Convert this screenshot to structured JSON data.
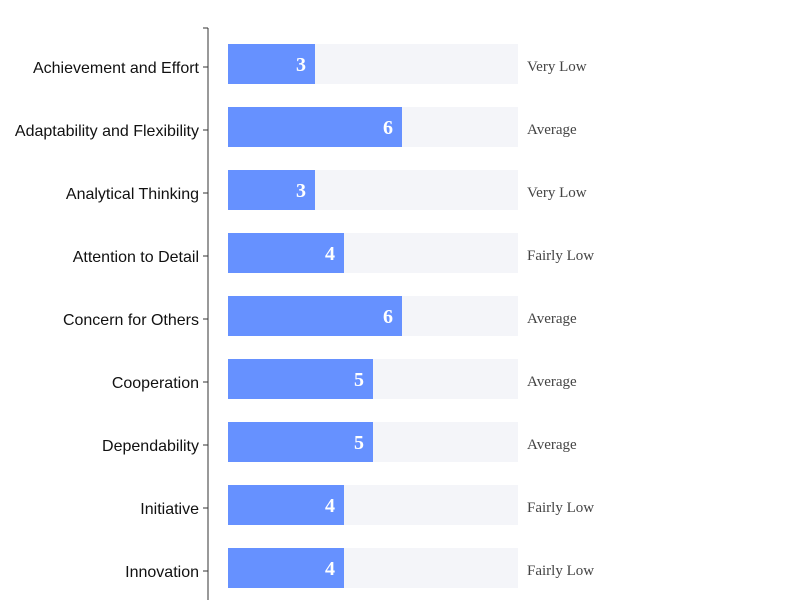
{
  "chart_data": {
    "type": "bar",
    "orientation": "horizontal",
    "categories": [
      "Achievement and Effort",
      "Adaptability and Flexibility",
      "Analytical Thinking",
      "Attention to Detail",
      "Concern for Others",
      "Cooperation",
      "Dependability",
      "Initiative",
      "Innovation"
    ],
    "values": [
      3,
      6,
      3,
      4,
      6,
      5,
      5,
      4,
      4
    ],
    "ratings": [
      "Very Low",
      "Average",
      "Very Low",
      "Fairly Low",
      "Average",
      "Average",
      "Average",
      "Fairly Low",
      "Fairly Low"
    ],
    "xlim": [
      0,
      10
    ],
    "grid": false,
    "colors": {
      "bar": "#6691ff",
      "track": "#f4f5f9",
      "axis": "#333333"
    }
  }
}
